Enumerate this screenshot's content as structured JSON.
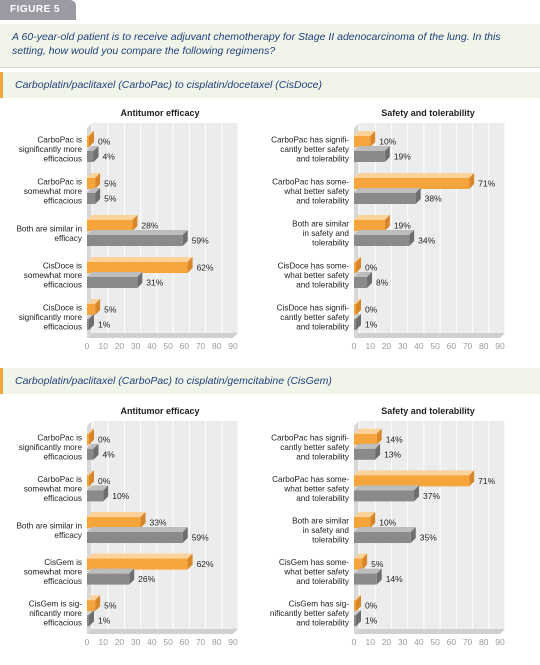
{
  "figure_label": "FIGURE 5",
  "question": "A 60-year-old patient is to receive adjuvant chemotherapy for Stage II adenocarcinoma of the lung. In this setting, how would you compare the following regimens?",
  "section1_title": "Carboplatin/paclitaxel (CarboPac) to cisplatin/docetaxel (CisDoce)",
  "section2_title": "Carboplatin/paclitaxel (CarboPac) to cisplatin/gemcitabine (CisGem)",
  "colors": {
    "orange": "#f6a43c",
    "gray": "#8a8a8a",
    "grid": "#d8d8d8",
    "back": "#ececec"
  },
  "chart_data": [
    {
      "type": "bar",
      "title": "Antitumor efficacy",
      "categories": [
        "CarboPac is significantly more efficacious",
        "CarboPac is somewhat more efficacious",
        "Both are similar in efficacy",
        "CisDoce is somewhat more efficacious",
        "CisDoce is significantly more efficacious"
      ],
      "series": [
        {
          "values": [
            0,
            5,
            28,
            62,
            5
          ]
        },
        {
          "values": [
            4,
            5,
            59,
            31,
            1
          ]
        }
      ],
      "xlim": [
        0,
        90
      ],
      "xticks": [
        0,
        10,
        20,
        30,
        40,
        50,
        60,
        70,
        80,
        90
      ],
      "unit": "%"
    },
    {
      "type": "bar",
      "title": "Safety and tolerability",
      "categories": [
        "CarboPac has significantly better safety and tolerability",
        "CarboPac has somewhat better safety and tolerability",
        "Both are similar in safety and tolerability",
        "CisDoce has somewhat better safety and tolerability",
        "CisDoce has significantly better safety and tolerability"
      ],
      "series": [
        {
          "values": [
            10,
            71,
            19,
            0,
            0
          ]
        },
        {
          "values": [
            19,
            38,
            34,
            8,
            1
          ]
        }
      ],
      "xlim": [
        0,
        90
      ],
      "xticks": [
        0,
        10,
        20,
        30,
        40,
        50,
        60,
        70,
        80,
        90
      ],
      "unit": "%"
    },
    {
      "type": "bar",
      "title": "Antitumor efficacy",
      "categories": [
        "CarboPac is significantly more efficacious",
        "CarboPac is somewhat more efficacious",
        "Both are similar in efficacy",
        "CisGem is somewhat more efficacious",
        "CisGem is significantly more efficacious"
      ],
      "series": [
        {
          "values": [
            0,
            0,
            33,
            62,
            5
          ]
        },
        {
          "values": [
            4,
            10,
            59,
            26,
            1
          ]
        }
      ],
      "xlim": [
        0,
        90
      ],
      "xticks": [
        0,
        10,
        20,
        30,
        40,
        50,
        60,
        70,
        80,
        90
      ],
      "unit": "%"
    },
    {
      "type": "bar",
      "title": "Safety and tolerability",
      "categories": [
        "CarboPac has significantly better safety and tolerability",
        "CarboPac has somewhat better safety and tolerability",
        "Both are similar in safety and tolerability",
        "CisGem has somewhat better safety and tolerability",
        "CisGem has significantly better safety and tolerability"
      ],
      "series": [
        {
          "values": [
            14,
            71,
            10,
            5,
            0
          ]
        },
        {
          "values": [
            13,
            37,
            35,
            14,
            1
          ]
        }
      ],
      "xlim": [
        0,
        90
      ],
      "xticks": [
        0,
        10,
        20,
        30,
        40,
        50,
        60,
        70,
        80,
        90
      ],
      "unit": "%"
    }
  ]
}
